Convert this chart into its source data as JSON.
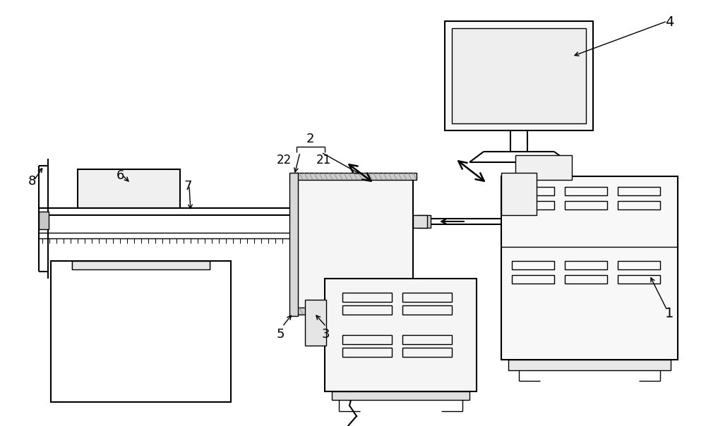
{
  "bg_color": "#ffffff",
  "lc": "#000000",
  "lw": 1.5,
  "lw_thin": 1.0,
  "lw_thick": 2.0
}
